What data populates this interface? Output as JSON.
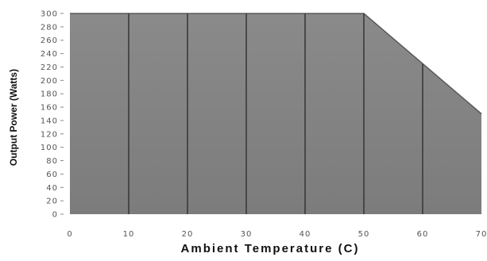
{
  "chart_data": {
    "type": "area",
    "x": [
      0,
      50,
      70
    ],
    "y": [
      300,
      300,
      150
    ],
    "xlim": [
      0,
      70
    ],
    "ylim": [
      0,
      300
    ],
    "xticks": [
      0,
      10,
      20,
      30,
      40,
      50,
      60,
      70
    ],
    "yticks": [
      0,
      20,
      40,
      60,
      80,
      100,
      120,
      140,
      160,
      180,
      200,
      220,
      240,
      260,
      280,
      300
    ],
    "xtick_labels": [
      "0",
      "10",
      "20",
      "30",
      "40",
      "50",
      "60",
      "70"
    ],
    "ytick_labels": [
      "0",
      "20",
      "40",
      "60",
      "80",
      "100",
      "120",
      "140",
      "160",
      "180",
      "200",
      "220",
      "240",
      "260",
      "280",
      "300"
    ],
    "xlabel": "Ambient Temperature (C)",
    "ylabel": "Output Power (Watts)",
    "vertical_gridlines": [
      10,
      20,
      30,
      40,
      50,
      60
    ],
    "colors": {
      "fill": "#848484",
      "gridline": "#3a3a3a",
      "text": "#555555",
      "label": "#111111"
    }
  }
}
